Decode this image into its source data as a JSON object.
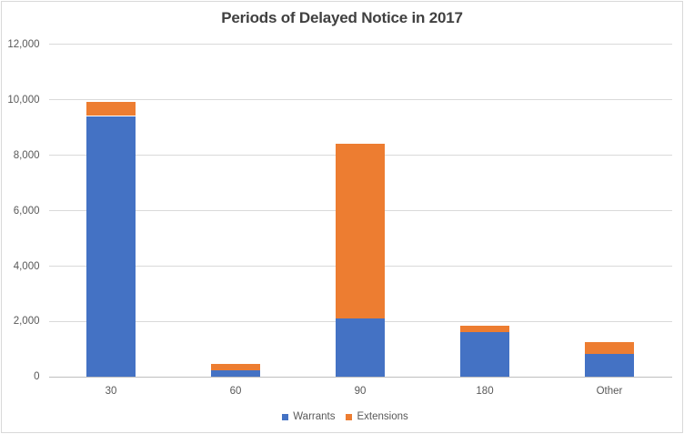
{
  "chart_data": {
    "type": "bar",
    "stacked": true,
    "title": "Periods of Delayed Notice in 2017",
    "categories": [
      "30",
      "60",
      "90",
      "180",
      "Other"
    ],
    "series": [
      {
        "name": "Warrants",
        "color": "#4472c4",
        "values": [
          9400,
          230,
          2100,
          1600,
          820
        ]
      },
      {
        "name": "Extensions",
        "color": "#ed7d31",
        "values": [
          500,
          230,
          6300,
          250,
          420
        ]
      }
    ],
    "xlabel": "",
    "ylabel": "",
    "ylim": [
      0,
      12000
    ],
    "ytick_interval": 2000,
    "ytick_labels": [
      "0",
      "2,000",
      "4,000",
      "6,000",
      "8,000",
      "10,000",
      "12,000"
    ],
    "grid": true,
    "legend_position": "bottom"
  },
  "colors": {
    "background": "#ffffff",
    "border": "#d9d9d9",
    "gridline": "#d9d9d9",
    "axis_line": "#bfbfbf",
    "title_text": "#404040",
    "label_text": "#595959"
  }
}
